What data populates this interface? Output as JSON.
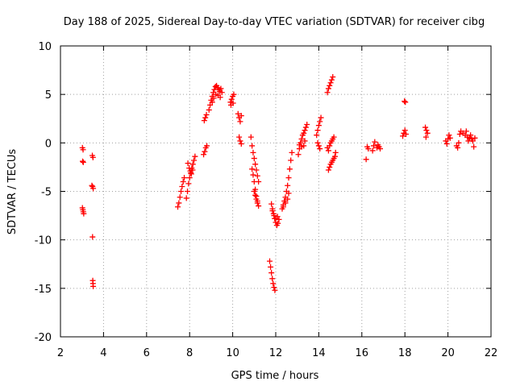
{
  "chart_data": {
    "type": "scatter",
    "title": "Day 188 of 2025, Sidereal Day-to-day VTEC variation (SDTVAR) for receiver cibg",
    "xlabel": "GPS time / hours",
    "ylabel": "SDTVAR / TECUs",
    "xlim": [
      2,
      22
    ],
    "ylim": [
      -20,
      10
    ],
    "xticks": [
      2,
      4,
      6,
      8,
      10,
      12,
      14,
      16,
      18,
      20,
      22
    ],
    "yticks": [
      -20,
      -15,
      -10,
      -5,
      0,
      5,
      10
    ],
    "xtick_labels": [
      "2",
      "4",
      "6",
      "8",
      "10",
      "12",
      "14",
      "16",
      "18",
      "20",
      "22"
    ],
    "ytick_labels": [
      "-20",
      "-15",
      "-10",
      "-5",
      "0",
      "5",
      "10"
    ],
    "grid": true,
    "marker": "+",
    "color": "#ff0000",
    "series": [
      {
        "name": "SDTVAR",
        "points": [
          [
            3.02,
            -0.5
          ],
          [
            3.05,
            -0.7
          ],
          [
            3.03,
            -1.9
          ],
          [
            3.06,
            -2.0
          ],
          [
            3.02,
            -6.7
          ],
          [
            3.04,
            -6.9
          ],
          [
            3.06,
            -7.1
          ],
          [
            3.08,
            -7.3
          ],
          [
            3.48,
            -1.3
          ],
          [
            3.51,
            -1.5
          ],
          [
            3.46,
            -4.4
          ],
          [
            3.49,
            -4.5
          ],
          [
            3.52,
            -4.7
          ],
          [
            3.49,
            -9.7
          ],
          [
            3.5,
            -14.2
          ],
          [
            3.51,
            -14.5
          ],
          [
            3.52,
            -14.8
          ],
          [
            7.45,
            -6.6
          ],
          [
            7.5,
            -6.2
          ],
          [
            7.55,
            -5.6
          ],
          [
            7.6,
            -5.0
          ],
          [
            7.65,
            -4.5
          ],
          [
            7.7,
            -4.0
          ],
          [
            7.75,
            -3.6
          ],
          [
            7.85,
            -5.7
          ],
          [
            7.9,
            -5.0
          ],
          [
            7.95,
            -4.2
          ],
          [
            8.0,
            -3.6
          ],
          [
            8.05,
            -3.1
          ],
          [
            8.1,
            -2.6
          ],
          [
            8.15,
            -2.2
          ],
          [
            8.2,
            -1.8
          ],
          [
            8.25,
            -1.4
          ],
          [
            7.92,
            -2.1
          ],
          [
            7.98,
            -2.6
          ],
          [
            8.03,
            -2.9
          ],
          [
            8.08,
            -3.2
          ],
          [
            8.14,
            -2.8
          ],
          [
            8.65,
            -1.2
          ],
          [
            8.7,
            -0.9
          ],
          [
            8.75,
            -0.5
          ],
          [
            8.8,
            -0.3
          ],
          [
            8.68,
            2.3
          ],
          [
            8.73,
            2.6
          ],
          [
            8.78,
            2.9
          ],
          [
            8.9,
            3.4
          ],
          [
            8.95,
            3.9
          ],
          [
            9.0,
            4.4
          ],
          [
            9.05,
            4.8
          ],
          [
            9.1,
            5.2
          ],
          [
            9.15,
            5.5
          ],
          [
            9.2,
            5.8
          ],
          [
            9.25,
            5.9
          ],
          [
            9.3,
            5.7
          ],
          [
            9.35,
            5.5
          ],
          [
            9.4,
            5.3
          ],
          [
            9.45,
            5.6
          ],
          [
            9.5,
            5.2
          ],
          [
            9.05,
            4.2
          ],
          [
            9.12,
            4.6
          ],
          [
            9.22,
            5.0
          ],
          [
            9.32,
            4.9
          ],
          [
            9.42,
            4.7
          ],
          [
            9.9,
            4.2
          ],
          [
            9.95,
            4.5
          ],
          [
            10.0,
            4.8
          ],
          [
            10.05,
            5.0
          ],
          [
            9.92,
            3.9
          ],
          [
            10.02,
            4.1
          ],
          [
            10.25,
            3.0
          ],
          [
            10.3,
            2.6
          ],
          [
            10.35,
            2.2
          ],
          [
            10.4,
            2.8
          ],
          [
            10.3,
            0.6
          ],
          [
            10.35,
            0.2
          ],
          [
            10.4,
            -0.1
          ],
          [
            10.85,
            0.6
          ],
          [
            10.9,
            -0.3
          ],
          [
            10.95,
            -1.0
          ],
          [
            11.0,
            -1.6
          ],
          [
            11.05,
            -2.2
          ],
          [
            11.1,
            -2.8
          ],
          [
            11.15,
            -3.4
          ],
          [
            11.2,
            -4.0
          ],
          [
            10.9,
            -2.7
          ],
          [
            10.95,
            -3.3
          ],
          [
            11.0,
            -4.0
          ],
          [
            11.05,
            -4.8
          ],
          [
            11.1,
            -5.5
          ],
          [
            11.15,
            -6.0
          ],
          [
            11.2,
            -6.5
          ],
          [
            11.0,
            -5.0
          ],
          [
            11.05,
            -5.4
          ],
          [
            11.1,
            -5.8
          ],
          [
            11.15,
            -6.2
          ],
          [
            11.72,
            -12.2
          ],
          [
            11.76,
            -12.8
          ],
          [
            11.8,
            -13.4
          ],
          [
            11.84,
            -14.0
          ],
          [
            11.88,
            -14.5
          ],
          [
            11.92,
            -14.9
          ],
          [
            11.96,
            -15.2
          ],
          [
            11.8,
            -6.3
          ],
          [
            11.85,
            -6.8
          ],
          [
            11.9,
            -7.3
          ],
          [
            11.95,
            -7.8
          ],
          [
            12.0,
            -8.2
          ],
          [
            12.05,
            -8.5
          ],
          [
            12.1,
            -8.3
          ],
          [
            12.15,
            -7.9
          ],
          [
            11.85,
            -7.0
          ],
          [
            11.92,
            -7.5
          ],
          [
            12.0,
            -7.8
          ],
          [
            12.08,
            -7.6
          ],
          [
            12.3,
            -6.8
          ],
          [
            12.35,
            -6.4
          ],
          [
            12.4,
            -6.0
          ],
          [
            12.45,
            -5.6
          ],
          [
            12.5,
            -5.0
          ],
          [
            12.55,
            -4.4
          ],
          [
            12.6,
            -3.6
          ],
          [
            12.65,
            -2.7
          ],
          [
            12.7,
            -1.8
          ],
          [
            12.75,
            -1.0
          ],
          [
            12.35,
            -6.6
          ],
          [
            12.45,
            -6.2
          ],
          [
            12.55,
            -5.8
          ],
          [
            12.6,
            -5.2
          ],
          [
            13.05,
            -1.2
          ],
          [
            13.1,
            -0.6
          ],
          [
            13.15,
            0.0
          ],
          [
            13.2,
            0.4
          ],
          [
            13.25,
            0.8
          ],
          [
            13.3,
            1.0
          ],
          [
            13.35,
            1.3
          ],
          [
            13.4,
            1.6
          ],
          [
            13.45,
            1.9
          ],
          [
            13.1,
            -0.2
          ],
          [
            13.2,
            -0.4
          ],
          [
            13.3,
            -0.3
          ],
          [
            13.35,
            0.2
          ],
          [
            13.9,
            0.8
          ],
          [
            13.95,
            1.3
          ],
          [
            14.0,
            1.8
          ],
          [
            14.05,
            2.2
          ],
          [
            14.1,
            2.6
          ],
          [
            13.95,
            0.0
          ],
          [
            14.0,
            -0.3
          ],
          [
            14.05,
            -0.6
          ],
          [
            14.4,
            5.2
          ],
          [
            14.45,
            5.6
          ],
          [
            14.5,
            5.9
          ],
          [
            14.55,
            6.2
          ],
          [
            14.6,
            6.5
          ],
          [
            14.65,
            6.8
          ],
          [
            14.4,
            -0.5
          ],
          [
            14.45,
            -0.8
          ],
          [
            14.5,
            -0.3
          ],
          [
            14.55,
            0.0
          ],
          [
            14.6,
            0.2
          ],
          [
            14.65,
            0.4
          ],
          [
            14.7,
            0.6
          ],
          [
            14.45,
            -2.8
          ],
          [
            14.5,
            -2.5
          ],
          [
            14.55,
            -2.2
          ],
          [
            14.6,
            -2.0
          ],
          [
            14.65,
            -1.8
          ],
          [
            14.7,
            -1.6
          ],
          [
            14.75,
            -1.4
          ],
          [
            14.78,
            -1.0
          ],
          [
            16.2,
            -1.7
          ],
          [
            16.25,
            -0.4
          ],
          [
            16.3,
            -0.6
          ],
          [
            16.5,
            -0.8
          ],
          [
            16.55,
            -0.3
          ],
          [
            16.6,
            0.1
          ],
          [
            16.7,
            -0.5
          ],
          [
            16.75,
            -0.2
          ],
          [
            16.8,
            -0.4
          ],
          [
            16.85,
            -0.6
          ],
          [
            17.9,
            0.7
          ],
          [
            17.95,
            1.0
          ],
          [
            18.0,
            1.3
          ],
          [
            18.05,
            0.9
          ],
          [
            17.98,
            4.3
          ],
          [
            18.02,
            4.2
          ],
          [
            18.95,
            1.6
          ],
          [
            19.0,
            1.3
          ],
          [
            19.05,
            1.0
          ],
          [
            18.98,
            0.6
          ],
          [
            19.9,
            0.2
          ],
          [
            19.95,
            -0.1
          ],
          [
            20.0,
            0.4
          ],
          [
            20.05,
            0.8
          ],
          [
            20.1,
            0.5
          ],
          [
            20.4,
            -0.3
          ],
          [
            20.45,
            -0.5
          ],
          [
            20.5,
            0.0
          ],
          [
            20.55,
            0.9
          ],
          [
            20.6,
            1.2
          ],
          [
            20.7,
            1.0
          ],
          [
            20.8,
            0.8
          ],
          [
            20.85,
            1.2
          ],
          [
            20.9,
            0.6
          ],
          [
            20.95,
            0.2
          ],
          [
            21.0,
            0.5
          ],
          [
            21.05,
            0.8
          ],
          [
            21.1,
            0.4
          ],
          [
            21.15,
            0.2
          ],
          [
            21.2,
            -0.4
          ],
          [
            21.25,
            0.5
          ]
        ]
      }
    ]
  }
}
